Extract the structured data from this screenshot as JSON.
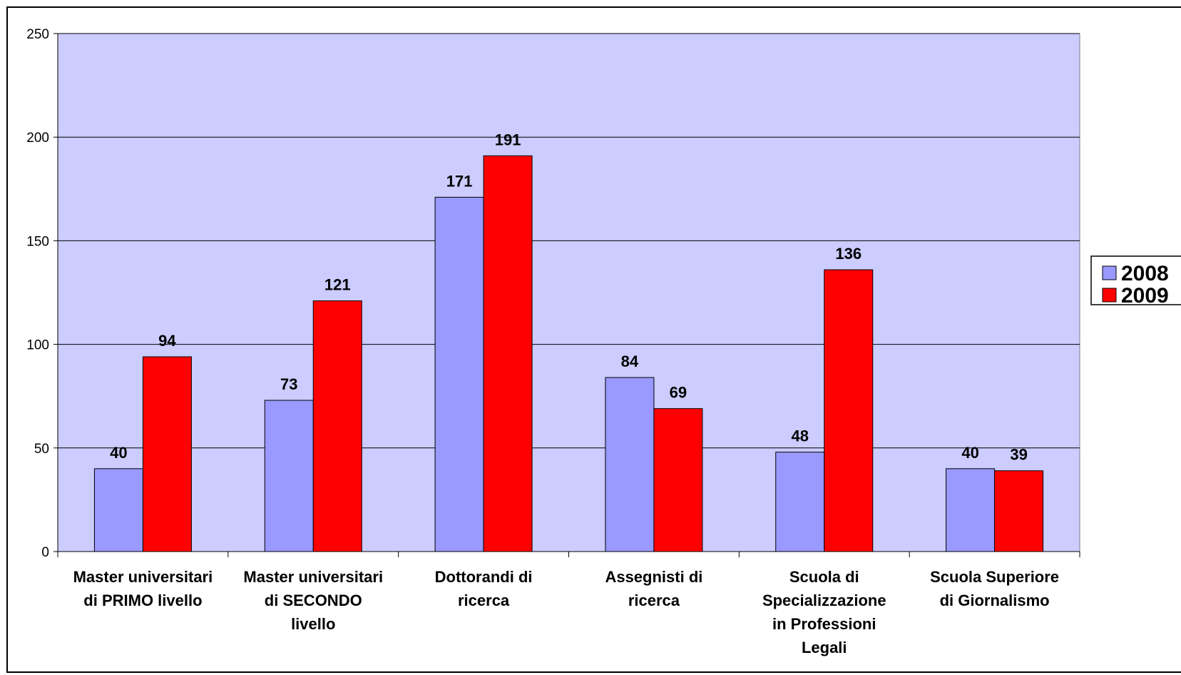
{
  "chart_data": {
    "type": "bar",
    "title": "",
    "xlabel": "",
    "ylabel": "",
    "ylim": [
      0,
      250
    ],
    "yticks": [
      0,
      50,
      100,
      150,
      200,
      250
    ],
    "grid": true,
    "legend_position": "right",
    "categories": [
      [
        "Master universitari",
        "di PRIMO livello"
      ],
      [
        "Master universitari",
        "di SECONDO",
        "livello"
      ],
      [
        "Dottorandi di",
        "ricerca"
      ],
      [
        "Assegnisti di",
        "ricerca"
      ],
      [
        "Scuola di",
        "Specializzazione",
        "in Professioni",
        "Legali"
      ],
      [
        "Scuola Superiore",
        "di Giornalismo"
      ]
    ],
    "series": [
      {
        "name": "2008",
        "color": "#9999ff",
        "values": [
          40,
          73,
          171,
          84,
          48,
          40
        ]
      },
      {
        "name": "2009",
        "color": "#ff0000",
        "values": [
          94,
          121,
          191,
          69,
          136,
          39
        ]
      }
    ],
    "plot_background": "#ccccff"
  }
}
